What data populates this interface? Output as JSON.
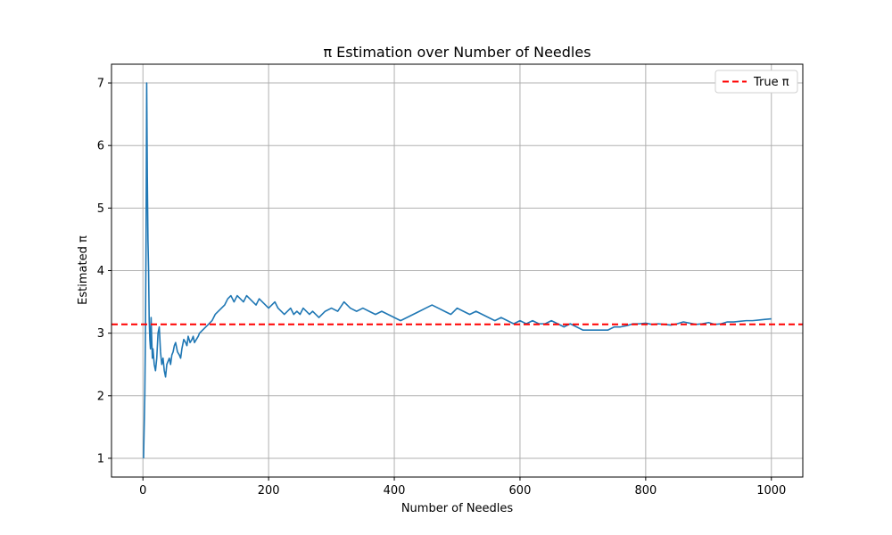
{
  "chart_data": {
    "type": "line",
    "title": "π Estimation over Number of Needles",
    "xlabel": "Number of Needles",
    "ylabel": "Estimated π",
    "xlim": [
      -50,
      1050
    ],
    "ylim": [
      0.7,
      7.3
    ],
    "xticks": [
      0,
      200,
      400,
      600,
      800,
      1000
    ],
    "yticks": [
      1,
      2,
      3,
      4,
      5,
      6,
      7
    ],
    "grid": true,
    "legend_position": "top-right",
    "series": [
      {
        "type": "line",
        "color": "#1f77b4",
        "x": [
          1,
          3,
          4,
          5,
          6,
          7,
          8,
          9,
          10,
          11,
          12,
          13,
          14,
          15,
          16,
          18,
          20,
          22,
          24,
          26,
          28,
          30,
          32,
          34,
          36,
          38,
          40,
          42,
          44,
          46,
          48,
          50,
          52,
          55,
          58,
          60,
          62,
          65,
          68,
          70,
          72,
          75,
          78,
          80,
          82,
          85,
          88,
          90,
          95,
          100,
          105,
          110,
          115,
          120,
          125,
          130,
          135,
          140,
          145,
          150,
          155,
          160,
          165,
          170,
          175,
          180,
          185,
          190,
          195,
          200,
          205,
          210,
          215,
          220,
          225,
          230,
          235,
          240,
          245,
          250,
          255,
          260,
          265,
          270,
          280,
          290,
          300,
          310,
          320,
          330,
          340,
          350,
          360,
          370,
          380,
          390,
          400,
          410,
          420,
          430,
          440,
          450,
          460,
          470,
          480,
          490,
          500,
          510,
          520,
          530,
          540,
          550,
          560,
          570,
          580,
          590,
          600,
          610,
          620,
          630,
          640,
          650,
          660,
          670,
          680,
          690,
          700,
          710,
          720,
          730,
          740,
          750,
          760,
          770,
          780,
          790,
          800,
          810,
          820,
          830,
          840,
          850,
          860,
          870,
          880,
          890,
          900,
          910,
          920,
          930,
          940,
          950,
          960,
          970,
          980,
          990,
          1000
        ],
        "values": [
          1.0,
          2.0,
          3.0,
          4.5,
          7.0,
          5.5,
          4.5,
          4.0,
          3.2,
          2.9,
          2.75,
          3.25,
          2.9,
          2.6,
          2.75,
          2.5,
          2.4,
          2.6,
          3.0,
          3.1,
          2.7,
          2.5,
          2.6,
          2.4,
          2.3,
          2.5,
          2.55,
          2.6,
          2.5,
          2.65,
          2.7,
          2.8,
          2.85,
          2.7,
          2.65,
          2.6,
          2.75,
          2.9,
          2.85,
          2.8,
          2.95,
          2.85,
          2.9,
          2.95,
          2.85,
          2.9,
          2.95,
          3.0,
          3.05,
          3.1,
          3.15,
          3.2,
          3.3,
          3.35,
          3.4,
          3.45,
          3.55,
          3.6,
          3.5,
          3.6,
          3.55,
          3.5,
          3.6,
          3.55,
          3.5,
          3.45,
          3.55,
          3.5,
          3.45,
          3.4,
          3.45,
          3.5,
          3.4,
          3.35,
          3.3,
          3.35,
          3.4,
          3.3,
          3.35,
          3.3,
          3.4,
          3.35,
          3.3,
          3.35,
          3.25,
          3.35,
          3.4,
          3.35,
          3.5,
          3.4,
          3.35,
          3.4,
          3.35,
          3.3,
          3.35,
          3.3,
          3.25,
          3.2,
          3.25,
          3.3,
          3.35,
          3.4,
          3.45,
          3.4,
          3.35,
          3.3,
          3.4,
          3.35,
          3.3,
          3.35,
          3.3,
          3.25,
          3.2,
          3.25,
          3.2,
          3.15,
          3.2,
          3.15,
          3.2,
          3.15,
          3.15,
          3.2,
          3.15,
          3.1,
          3.15,
          3.1,
          3.05,
          3.05,
          3.05,
          3.05,
          3.05,
          3.1,
          3.1,
          3.12,
          3.15,
          3.15,
          3.16,
          3.14,
          3.15,
          3.14,
          3.13,
          3.15,
          3.18,
          3.16,
          3.14,
          3.15,
          3.17,
          3.14,
          3.15,
          3.18,
          3.18,
          3.19,
          3.2,
          3.2,
          3.21,
          3.22,
          3.23
        ]
      },
      {
        "name": "True π",
        "type": "hline",
        "value": 3.14159,
        "color": "#ff0000",
        "dash": "dashed"
      }
    ]
  }
}
